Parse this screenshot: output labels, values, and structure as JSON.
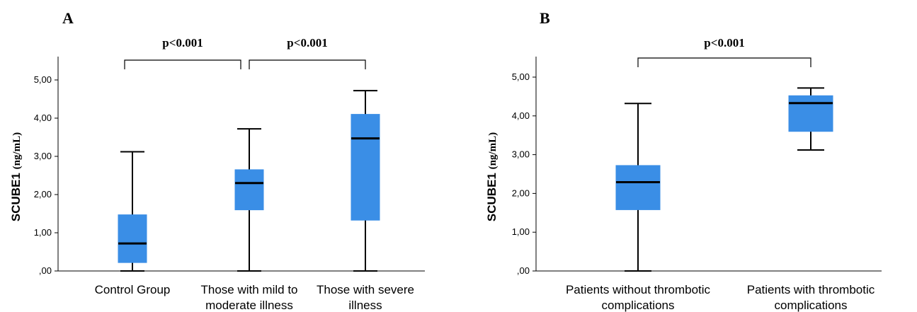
{
  "chart_data": [
    {
      "type": "box",
      "panel": "A",
      "ylabel": "SCUBE1",
      "ylabel_unit": "(ng/mL)",
      "ylim": [
        0,
        5.5
      ],
      "yticks": [
        {
          "value": 0,
          "label": ",00"
        },
        {
          "value": 1,
          "label": "1,00"
        },
        {
          "value": 2,
          "label": "2,00"
        },
        {
          "value": 3,
          "label": "3,00"
        },
        {
          "value": 4,
          "label": "4,00"
        },
        {
          "value": 5,
          "label": "5,00"
        }
      ],
      "categories": [
        [
          "Control Group"
        ],
        [
          "Those with mild to",
          "moderate illness"
        ],
        [
          "Those with severe",
          "illness"
        ]
      ],
      "boxes": [
        {
          "min": 0.0,
          "q1": 0.22,
          "median": 0.72,
          "q3": 1.47,
          "max": 3.12
        },
        {
          "min": 0.0,
          "q1": 1.6,
          "median": 2.3,
          "q3": 2.65,
          "max": 3.72
        },
        {
          "min": 0.0,
          "q1": 1.33,
          "median": 3.47,
          "q3": 4.1,
          "max": 4.72
        }
      ],
      "comparisons": [
        {
          "from": 0,
          "to": 1,
          "label": "p<0.001"
        },
        {
          "from": 1,
          "to": 2,
          "label": "p<0.001"
        }
      ],
      "color": "#3a8ee6"
    },
    {
      "type": "box",
      "panel": "B",
      "ylabel": "SCUBE1",
      "ylabel_unit": "(ng/mL)",
      "ylim": [
        0,
        5.5
      ],
      "yticks": [
        {
          "value": 0,
          "label": ",00"
        },
        {
          "value": 1,
          "label": "1,00"
        },
        {
          "value": 2,
          "label": "2,00"
        },
        {
          "value": 3,
          "label": "3,00"
        },
        {
          "value": 4,
          "label": "4,00"
        },
        {
          "value": 5,
          "label": "5,00"
        }
      ],
      "categories": [
        [
          "Patients without thrombotic",
          "complications"
        ],
        [
          "Patients with thrombotic",
          "complications"
        ]
      ],
      "boxes": [
        {
          "min": 0.0,
          "q1": 1.58,
          "median": 2.29,
          "q3": 2.72,
          "max": 4.32
        },
        {
          "min": 3.12,
          "q1": 3.6,
          "median": 4.33,
          "q3": 4.52,
          "max": 4.72
        }
      ],
      "comparisons": [
        {
          "from": 0,
          "to": 1,
          "label": "p<0.001"
        }
      ],
      "color": "#3a8ee6"
    }
  ]
}
